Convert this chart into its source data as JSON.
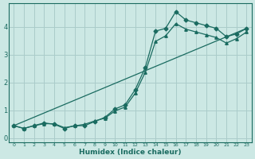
{
  "xlabel": "Humidex (Indice chaleur)",
  "ylabel": "",
  "background_color": "#cce8e4",
  "grid_color": "#aaccca",
  "line_color": "#1a6b60",
  "xlim": [
    -0.5,
    23.5
  ],
  "ylim": [
    -0.15,
    4.85
  ],
  "xticks": [
    0,
    1,
    2,
    3,
    4,
    5,
    6,
    7,
    8,
    9,
    10,
    11,
    12,
    13,
    14,
    15,
    16,
    17,
    18,
    19,
    20,
    21,
    22,
    23
  ],
  "yticks": [
    0,
    1,
    2,
    3,
    4
  ],
  "line1_x": [
    0,
    1,
    2,
    3,
    4,
    5,
    6,
    7,
    8,
    9,
    10,
    11,
    12,
    13,
    14,
    15,
    16,
    17,
    18,
    19,
    20,
    21,
    22,
    23
  ],
  "line1_y": [
    0.45,
    0.35,
    0.45,
    0.55,
    0.5,
    0.35,
    0.45,
    0.45,
    0.6,
    0.75,
    1.05,
    1.2,
    1.75,
    2.55,
    3.85,
    3.95,
    4.55,
    4.25,
    4.15,
    4.05,
    3.95,
    3.65,
    3.75,
    3.95
  ],
  "line2_x": [
    0,
    1,
    2,
    3,
    4,
    5,
    6,
    7,
    8,
    9,
    10,
    11,
    12,
    13,
    14,
    15,
    16,
    17,
    18,
    19,
    20,
    21,
    22,
    23
  ],
  "line2_y": [
    0.45,
    0.35,
    0.45,
    0.52,
    0.52,
    0.38,
    0.44,
    0.5,
    0.62,
    0.72,
    0.98,
    1.12,
    1.62,
    2.38,
    3.48,
    3.68,
    4.12,
    3.92,
    3.82,
    3.72,
    3.62,
    3.42,
    3.58,
    3.82
  ],
  "line3_x": [
    0,
    23
  ],
  "line3_y": [
    0.45,
    3.95
  ]
}
